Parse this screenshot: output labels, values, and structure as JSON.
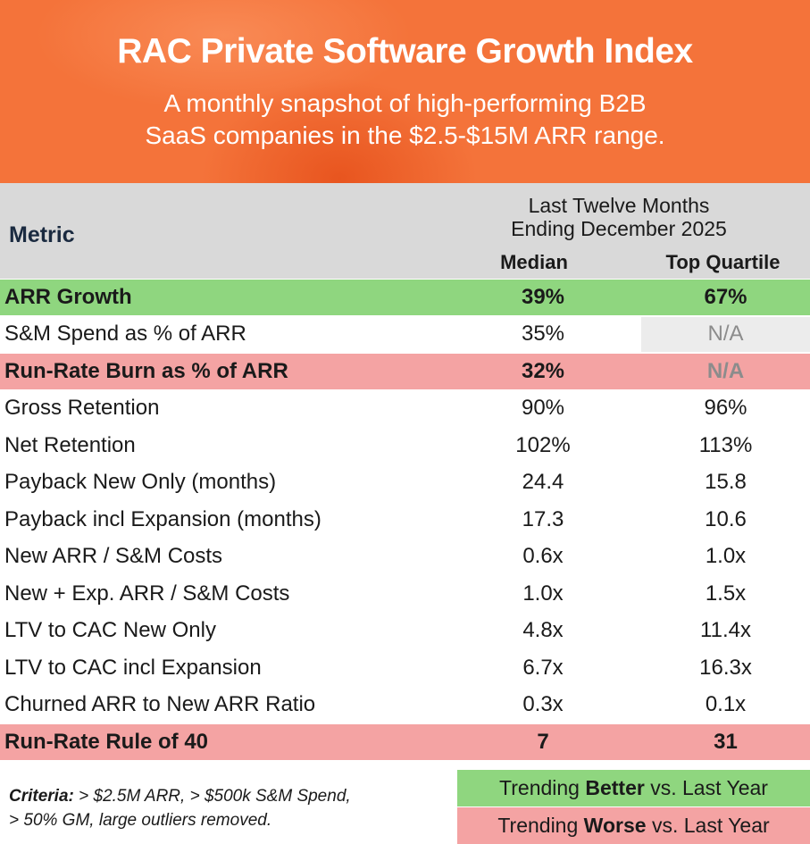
{
  "header": {
    "title": "RAC Private Software Growth Index",
    "subtitle_lines": [
      "A monthly snapshot of high-performing B2B",
      "SaaS companies in the $2.5-$15M ARR range."
    ]
  },
  "table": {
    "metric_header": "Metric",
    "period_lines": [
      "Last Twelve Months",
      "Ending December 2025"
    ],
    "columns": [
      "Median",
      "Top Quartile"
    ],
    "rows": [
      [
        "ARR Growth",
        "39%",
        "67%"
      ],
      [
        "S&M Spend as % of ARR",
        "35%",
        "N/A"
      ],
      [
        "Run-Rate Burn as % of ARR",
        "32%",
        "N/A"
      ],
      [
        "Gross Retention",
        "90%",
        "96%"
      ],
      [
        "Net Retention",
        "102%",
        "113%"
      ],
      [
        "Payback New Only (months)",
        "24.4",
        "15.8"
      ],
      [
        "Payback incl Expansion (months)",
        "17.3",
        "10.6"
      ],
      [
        "New ARR / S&M Costs",
        "0.6x",
        "1.0x"
      ],
      [
        "New + Exp. ARR / S&M Costs",
        "1.0x",
        "1.5x"
      ],
      [
        "LTV to CAC New Only",
        "4.8x",
        "11.4x"
      ],
      [
        "LTV to CAC incl Expansion",
        "6.7x",
        "16.3x"
      ],
      [
        "Churned ARR to New ARR Ratio",
        "0.3x",
        "0.1x"
      ],
      [
        "Run-Rate Rule of 40",
        "7",
        "31"
      ]
    ]
  },
  "footer": {
    "criteria_label": "Criteria:",
    "criteria_lines": [
      "> $2.5M ARR, > $500k S&M Spend,",
      "> 50% GM, large outliers removed."
    ],
    "legend": [
      {
        "prefix": "Trending",
        "word": "Better",
        "suffix": "vs. Last Year"
      },
      {
        "prefix": "Trending",
        "word": "Worse",
        "suffix": "vs. Last Year"
      }
    ]
  }
}
